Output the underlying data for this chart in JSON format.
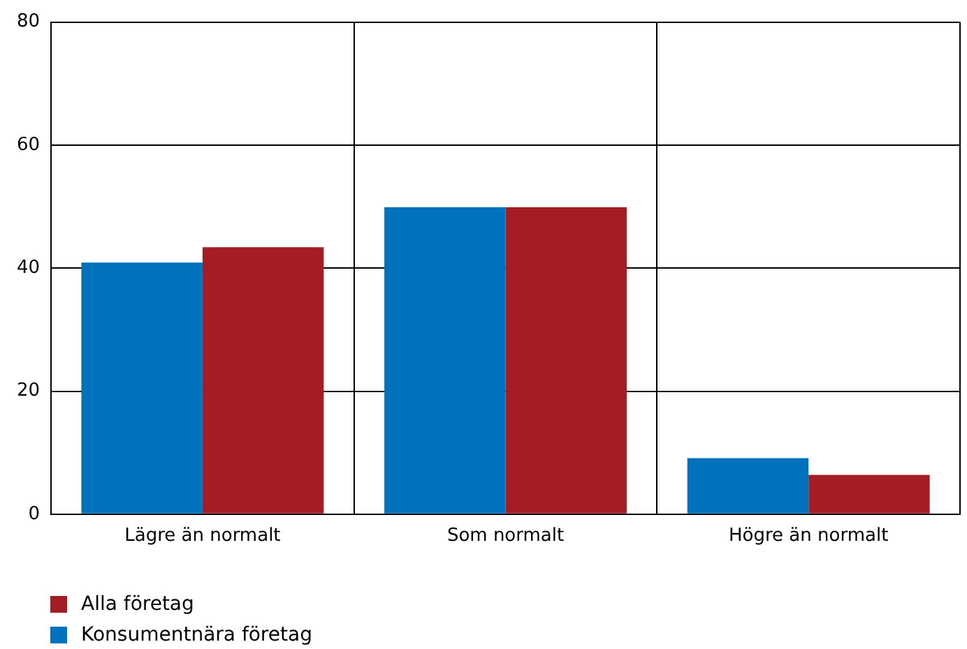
{
  "chart_data": {
    "type": "bar",
    "categories": [
      "Lägre än normalt",
      "Som normalt",
      "Högre än normalt"
    ],
    "series": [
      {
        "name": "Konsumentnära företag",
        "color": "#0071bc",
        "values": [
          40.9,
          49.9,
          9.1
        ]
      },
      {
        "name": "Alla företag",
        "color": "#a51d24",
        "values": [
          43.4,
          49.9,
          6.4
        ]
      }
    ],
    "ylim": [
      0,
      80
    ],
    "yticks": [
      0,
      20,
      40,
      60,
      80
    ],
    "grid": true,
    "legend": "bottom left"
  }
}
